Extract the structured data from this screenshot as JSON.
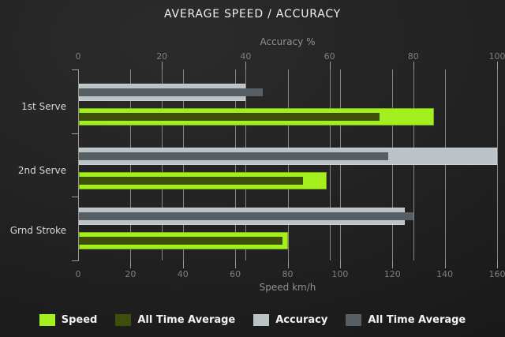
{
  "chart_data": {
    "type": "bar",
    "orientation": "horizontal",
    "title": "AVERAGE SPEED / ACCURACY",
    "categories": [
      "1st Serve",
      "2nd Serve",
      "Grnd Stroke"
    ],
    "series": [
      {
        "name": "Speed",
        "axis": "bottom",
        "color": "#a4f01e",
        "values": [
          136,
          95,
          80
        ]
      },
      {
        "name": "All Time Average",
        "axis": "bottom",
        "color": "#3d4f08",
        "values": [
          115,
          86,
          78
        ]
      },
      {
        "name": "Accuracy",
        "axis": "top",
        "color": "#bcc3c7",
        "values": [
          40,
          100,
          78
        ]
      },
      {
        "name": "All Time Average",
        "axis": "top",
        "color": "#575e64",
        "values": [
          44,
          74,
          80
        ]
      }
    ],
    "axes": {
      "top": {
        "label": "Accuracy %",
        "min": 0,
        "max": 100,
        "ticks": [
          0,
          20,
          40,
          60,
          80,
          100
        ]
      },
      "bottom": {
        "label": "Speed km/h",
        "min": 0,
        "max": 160,
        "ticks": [
          0,
          20,
          40,
          60,
          80,
          100,
          120,
          140,
          160
        ]
      }
    },
    "grid": true,
    "legend_position": "bottom",
    "legend": [
      {
        "label": "Speed",
        "color": "#a4f01e"
      },
      {
        "label": "All Time Average",
        "color": "#3d4f08"
      },
      {
        "label": "Accuracy",
        "color": "#bcc3c7"
      },
      {
        "label": "All Time Average",
        "color": "#575e64"
      }
    ],
    "colors": {
      "background": "#202020",
      "title_text": "#f1f1f1",
      "axis_text": "#909090",
      "tick_text": "#7f7f7f",
      "category_text": "#d6d6d6",
      "gridline": "#858585",
      "speed_bar": "#a4f01e",
      "speed_avg_bar": "#3d4f08",
      "accuracy_bar": "#bcc3c7",
      "accuracy_avg_bar": "#575e64"
    }
  }
}
